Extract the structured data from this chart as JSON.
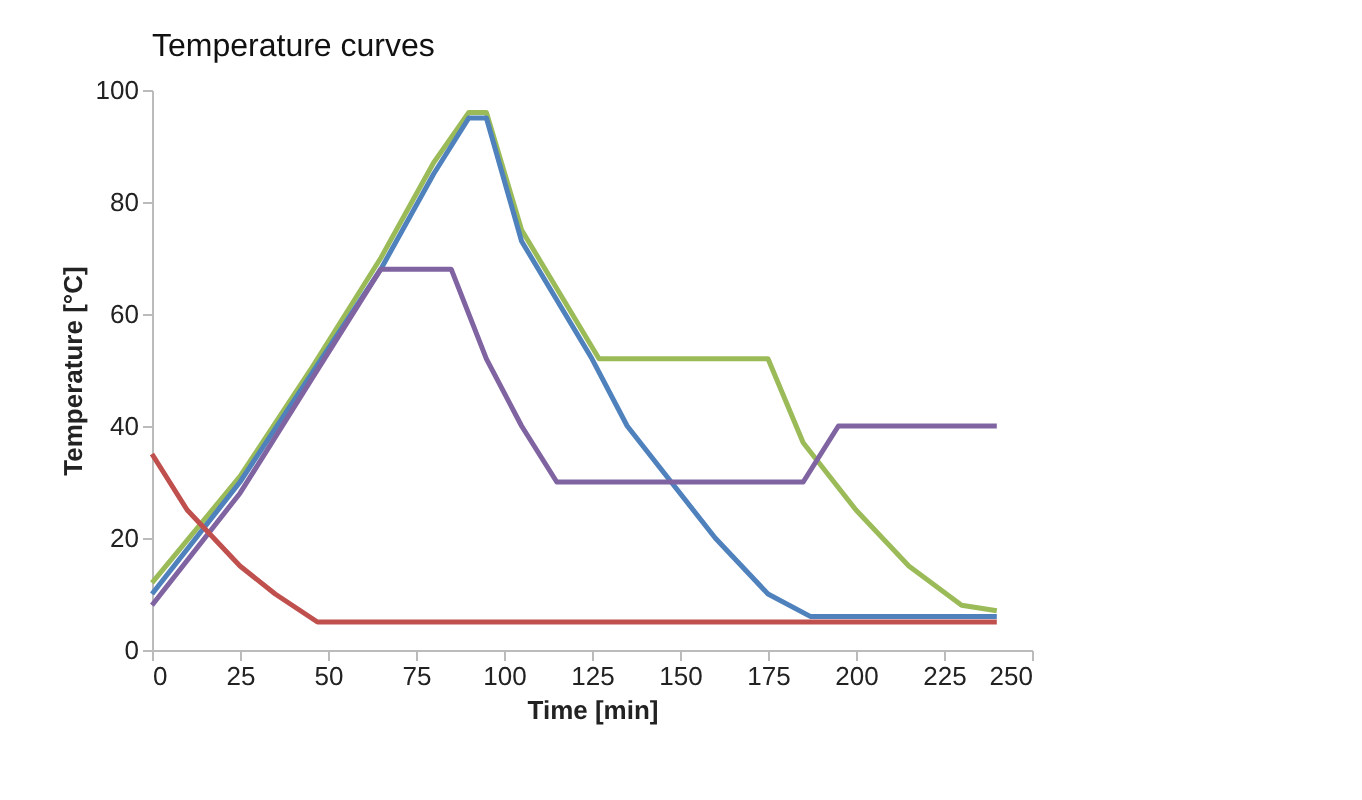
{
  "chart_data": {
    "type": "line",
    "title": "Temperature curves",
    "xlabel": "Time [min]",
    "ylabel": "Temperature [°C]",
    "xlim": [
      0,
      250
    ],
    "xticks": [
      0,
      25,
      50,
      75,
      100,
      125,
      150,
      175,
      200,
      225,
      250
    ],
    "ylim": [
      0,
      100
    ],
    "yticks": [
      0,
      20,
      40,
      60,
      80,
      100
    ],
    "grid": false,
    "marker": "none",
    "line_style": "solid",
    "series": [
      {
        "color": "#9bbb59",
        "x": [
          0,
          25,
          45,
          65,
          80,
          90,
          95,
          105,
          127,
          175,
          185,
          200,
          215,
          230,
          240
        ],
        "values": [
          12,
          31,
          50,
          70,
          87,
          96,
          96,
          75,
          52,
          52,
          37,
          25,
          15,
          8,
          7
        ]
      },
      {
        "color": "#4f81bd",
        "x": [
          0,
          25,
          45,
          65,
          80,
          90,
          95,
          105,
          125,
          135,
          160,
          175,
          187,
          240
        ],
        "values": [
          10,
          30,
          49,
          68,
          85,
          95,
          95,
          73,
          52,
          40,
          20,
          10,
          6,
          6
        ]
      },
      {
        "color": "#8064a2",
        "x": [
          0,
          25,
          45,
          65,
          85,
          95,
          105,
          115,
          185,
          195,
          240
        ],
        "values": [
          8,
          28,
          48,
          68,
          68,
          52,
          40,
          30,
          30,
          40,
          40
        ]
      },
      {
        "color": "#c0504d",
        "x": [
          0,
          10,
          25,
          35,
          47,
          240
        ],
        "values": [
          35,
          25,
          15,
          10,
          5,
          5
        ]
      }
    ]
  }
}
